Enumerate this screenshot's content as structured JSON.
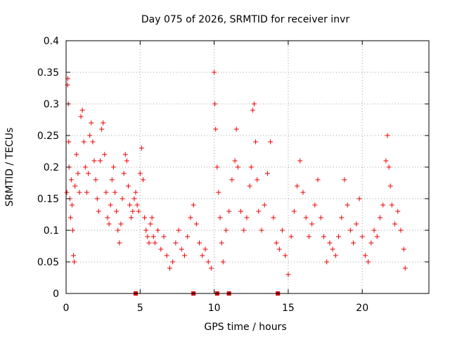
{
  "chart_data": {
    "type": "scatter",
    "title": "Day 075 of 2026, SRMTID for receiver invr",
    "xlabel": "GPS time / hours",
    "ylabel": "SRMTID / TECUs",
    "xlim": [
      0,
      24.5
    ],
    "ylim": [
      0,
      0.4
    ],
    "x_ticks": [
      0,
      5,
      10,
      15,
      20
    ],
    "x_tick_labels": [
      "0",
      "5",
      "10",
      "15",
      "20"
    ],
    "y_ticks": [
      0,
      0.05,
      0.1,
      0.15,
      0.2,
      0.25,
      0.3,
      0.35,
      0.4
    ],
    "y_tick_labels": [
      "0",
      "0.05",
      "0.1",
      "0.15",
      "0.2",
      "0.25",
      "0.3",
      "0.35",
      "0.4"
    ],
    "grid": true,
    "legend": "none",
    "colors": {
      "points": "#ee0000",
      "markers": "#cc0000"
    },
    "series": [
      {
        "name": "SRMTID",
        "marker": "plus",
        "points": [
          [
            0.05,
            0.16
          ],
          [
            0.1,
            0.33
          ],
          [
            0.12,
            0.34
          ],
          [
            0.15,
            0.3
          ],
          [
            0.18,
            0.24
          ],
          [
            0.2,
            0.2
          ],
          [
            0.25,
            0.15
          ],
          [
            0.3,
            0.12
          ],
          [
            0.35,
            0.18
          ],
          [
            0.4,
            0.14
          ],
          [
            0.45,
            0.1
          ],
          [
            0.5,
            0.06
          ],
          [
            0.55,
            0.05
          ],
          [
            0.6,
            0.17
          ],
          [
            0.7,
            0.22
          ],
          [
            0.8,
            0.19
          ],
          [
            0.9,
            0.16
          ],
          [
            1.0,
            0.28
          ],
          [
            1.1,
            0.29
          ],
          [
            1.2,
            0.24
          ],
          [
            1.3,
            0.2
          ],
          [
            1.4,
            0.16
          ],
          [
            1.5,
            0.19
          ],
          [
            1.6,
            0.25
          ],
          [
            1.7,
            0.27
          ],
          [
            1.8,
            0.24
          ],
          [
            1.9,
            0.21
          ],
          [
            2.0,
            0.18
          ],
          [
            2.1,
            0.15
          ],
          [
            2.2,
            0.13
          ],
          [
            2.3,
            0.21
          ],
          [
            2.4,
            0.26
          ],
          [
            2.5,
            0.27
          ],
          [
            2.6,
            0.22
          ],
          [
            2.7,
            0.16
          ],
          [
            2.8,
            0.12
          ],
          [
            2.9,
            0.11
          ],
          [
            3.0,
            0.14
          ],
          [
            3.1,
            0.18
          ],
          [
            3.2,
            0.2
          ],
          [
            3.3,
            0.16
          ],
          [
            3.4,
            0.13
          ],
          [
            3.5,
            0.1
          ],
          [
            3.6,
            0.08
          ],
          [
            3.7,
            0.11
          ],
          [
            3.8,
            0.15
          ],
          [
            3.9,
            0.19
          ],
          [
            4.0,
            0.22
          ],
          [
            4.1,
            0.21
          ],
          [
            4.2,
            0.17
          ],
          [
            4.3,
            0.14
          ],
          [
            4.4,
            0.12
          ],
          [
            4.5,
            0.13
          ],
          [
            4.6,
            0.15
          ],
          [
            4.7,
            0.16
          ],
          [
            4.8,
            0.14
          ],
          [
            4.9,
            0.13
          ],
          [
            5.0,
            0.19
          ],
          [
            5.1,
            0.23
          ],
          [
            5.2,
            0.18
          ],
          [
            5.3,
            0.12
          ],
          [
            5.4,
            0.1
          ],
          [
            5.5,
            0.09
          ],
          [
            5.6,
            0.08
          ],
          [
            5.7,
            0.11
          ],
          [
            5.8,
            0.12
          ],
          [
            5.9,
            0.09
          ],
          [
            6.0,
            0.08
          ],
          [
            6.2,
            0.1
          ],
          [
            6.4,
            0.07
          ],
          [
            6.6,
            0.09
          ],
          [
            6.8,
            0.06
          ],
          [
            7.0,
            0.04
          ],
          [
            7.2,
            0.05
          ],
          [
            7.4,
            0.08
          ],
          [
            7.6,
            0.1
          ],
          [
            7.8,
            0.07
          ],
          [
            8.0,
            0.06
          ],
          [
            8.2,
            0.09
          ],
          [
            8.4,
            0.12
          ],
          [
            8.6,
            0.14
          ],
          [
            8.8,
            0.11
          ],
          [
            9.0,
            0.08
          ],
          [
            9.2,
            0.06
          ],
          [
            9.4,
            0.07
          ],
          [
            9.6,
            0.05
          ],
          [
            9.8,
            0.04
          ],
          [
            10.0,
            0.35
          ],
          [
            10.05,
            0.3
          ],
          [
            10.1,
            0.26
          ],
          [
            10.2,
            0.2
          ],
          [
            10.3,
            0.16
          ],
          [
            10.4,
            0.12
          ],
          [
            10.5,
            0.08
          ],
          [
            10.6,
            0.05
          ],
          [
            10.8,
            0.1
          ],
          [
            11.0,
            0.13
          ],
          [
            11.2,
            0.18
          ],
          [
            11.4,
            0.21
          ],
          [
            11.5,
            0.26
          ],
          [
            11.6,
            0.2
          ],
          [
            11.8,
            0.13
          ],
          [
            12.0,
            0.1
          ],
          [
            12.2,
            0.12
          ],
          [
            12.4,
            0.17
          ],
          [
            12.5,
            0.2
          ],
          [
            12.6,
            0.29
          ],
          [
            12.7,
            0.3
          ],
          [
            12.8,
            0.24
          ],
          [
            12.9,
            0.18
          ],
          [
            13.0,
            0.13
          ],
          [
            13.2,
            0.1
          ],
          [
            13.4,
            0.14
          ],
          [
            13.6,
            0.19
          ],
          [
            13.8,
            0.24
          ],
          [
            14.0,
            0.12
          ],
          [
            14.2,
            0.08
          ],
          [
            14.4,
            0.07
          ],
          [
            14.6,
            0.1
          ],
          [
            14.8,
            0.06
          ],
          [
            15.0,
            0.03
          ],
          [
            15.2,
            0.09
          ],
          [
            15.4,
            0.13
          ],
          [
            15.6,
            0.17
          ],
          [
            15.8,
            0.21
          ],
          [
            16.0,
            0.16
          ],
          [
            16.2,
            0.12
          ],
          [
            16.4,
            0.09
          ],
          [
            16.6,
            0.11
          ],
          [
            16.8,
            0.14
          ],
          [
            17.0,
            0.18
          ],
          [
            17.2,
            0.12
          ],
          [
            17.4,
            0.09
          ],
          [
            17.6,
            0.05
          ],
          [
            17.8,
            0.08
          ],
          [
            18.0,
            0.07
          ],
          [
            18.2,
            0.06
          ],
          [
            18.4,
            0.09
          ],
          [
            18.6,
            0.12
          ],
          [
            18.8,
            0.18
          ],
          [
            19.0,
            0.14
          ],
          [
            19.2,
            0.1
          ],
          [
            19.4,
            0.08
          ],
          [
            19.6,
            0.11
          ],
          [
            19.8,
            0.15
          ],
          [
            20.0,
            0.09
          ],
          [
            20.2,
            0.06
          ],
          [
            20.4,
            0.05
          ],
          [
            20.6,
            0.08
          ],
          [
            20.8,
            0.1
          ],
          [
            21.0,
            0.09
          ],
          [
            21.2,
            0.12
          ],
          [
            21.4,
            0.14
          ],
          [
            21.6,
            0.21
          ],
          [
            21.7,
            0.25
          ],
          [
            21.8,
            0.2
          ],
          [
            21.9,
            0.17
          ],
          [
            22.0,
            0.14
          ],
          [
            22.2,
            0.11
          ],
          [
            22.4,
            0.13
          ],
          [
            22.6,
            0.1
          ],
          [
            22.8,
            0.07
          ],
          [
            22.9,
            0.04
          ]
        ]
      }
    ],
    "x_axis_markers": [
      4.7,
      8.6,
      10.2,
      11.0,
      14.3
    ]
  }
}
